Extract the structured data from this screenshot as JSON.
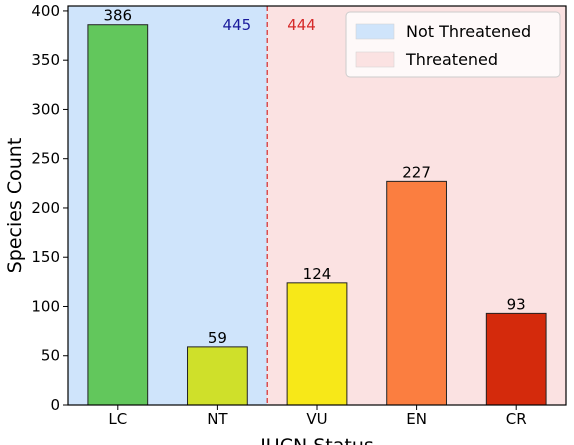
{
  "chart_data": {
    "type": "bar",
    "title": "",
    "xlabel": "IUCN Status",
    "ylabel": "Species Count",
    "categories": [
      "LC",
      "NT",
      "VU",
      "EN",
      "CR"
    ],
    "values": [
      386,
      59,
      124,
      227,
      93
    ],
    "bar_colors": [
      "#62c75c",
      "#cfe02a",
      "#f7e818",
      "#fb7e40",
      "#d42a0c"
    ],
    "ylim": [
      0,
      405
    ],
    "yticks": [
      0,
      50,
      100,
      150,
      200,
      250,
      300,
      350,
      400
    ],
    "grid": false,
    "regions": [
      {
        "name": "Not Threatened",
        "categories": [
          "LC",
          "NT"
        ],
        "color": "#cfe4fb",
        "total": "445",
        "total_color": "#1a1a9c"
      },
      {
        "name": "Threatened",
        "categories": [
          "VU",
          "EN",
          "CR"
        ],
        "color": "#fbe2e2",
        "total": "444",
        "total_color": "#d62a2a"
      }
    ],
    "divider_color": "#d62a2a",
    "legend": {
      "placement": "top-right",
      "entries": [
        "Not Threatened",
        "Threatened"
      ]
    }
  }
}
